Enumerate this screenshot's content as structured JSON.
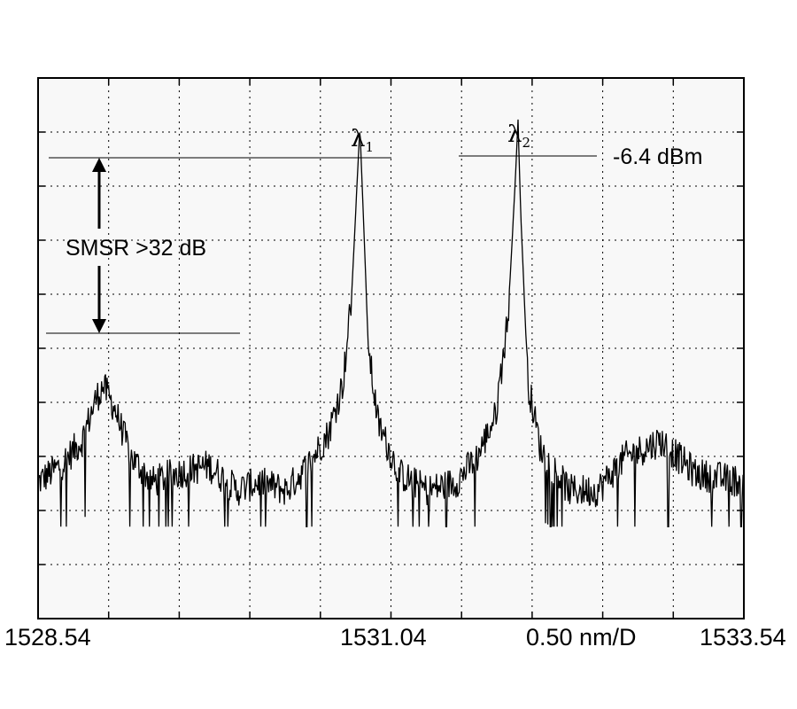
{
  "chart_data": {
    "type": "line",
    "title": "",
    "xlabel": "",
    "ylabel": "",
    "xlim": [
      1528.54,
      1533.54
    ],
    "ylim": [
      -66.4,
      -1.4
    ],
    "x_tick_labels": [
      "1528.54",
      "1531.04",
      "1533.54"
    ],
    "scale_label": "0.50 nm/D",
    "grid": true,
    "background": "#f8f8f8",
    "peaks": [
      {
        "label": "λ",
        "subscript": "1",
        "x": 1530.82,
        "y": -7.2
      },
      {
        "label": "λ",
        "subscript": "2",
        "x": 1531.94,
        "y": -6.4
      }
    ],
    "annotations": {
      "power_label": "-6.4 dBm",
      "smsr_label": "SMSR >32 dB",
      "side_mode": {
        "x": 1529.0,
        "y": -38.4
      }
    },
    "series": [
      {
        "values_note": "",
        "x": [
          1528.54,
          1528.7,
          1528.85,
          1528.95,
          1529.0,
          1529.08,
          1529.2,
          1529.35,
          1529.5,
          1529.75,
          1529.95,
          1530.1,
          1530.3,
          1530.45,
          1530.6,
          1530.7,
          1530.76,
          1530.8,
          1530.82,
          1530.84,
          1530.88,
          1530.95,
          1531.1,
          1531.3,
          1531.5,
          1531.65,
          1531.78,
          1531.87,
          1531.92,
          1531.94,
          1531.96,
          1532.01,
          1532.1,
          1532.3,
          1532.5,
          1532.7,
          1532.95,
          1533.2,
          1533.54
        ],
        "y": [
          -50,
          -48,
          -45,
          -40,
          -38.4,
          -41,
          -47,
          -50,
          -49,
          -48,
          -51,
          -50,
          -51,
          -48,
          -44,
          -38,
          -28,
          -14,
          -7.2,
          -16,
          -34,
          -43,
          -49,
          -51,
          -50,
          -47,
          -42,
          -30,
          -14,
          -6.4,
          -18,
          -38,
          -46,
          -51,
          -51,
          -47,
          -45,
          -49,
          -50
        ],
        "color": "#000000"
      }
    ]
  }
}
